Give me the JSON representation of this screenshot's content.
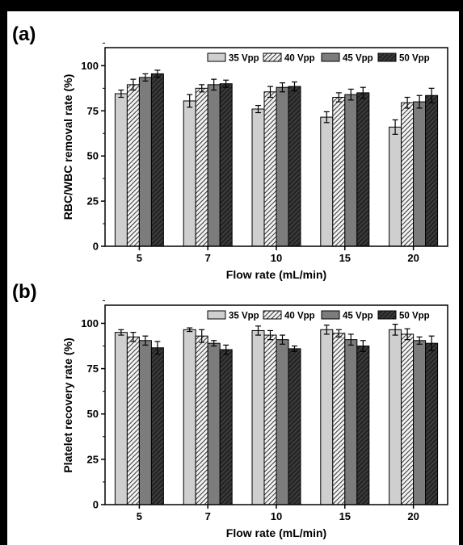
{
  "colors": {
    "35 Vpp": "#cfcfcf",
    "40 Vpp": "#f2f2f2",
    "45 Vpp": "#7c7c7c",
    "50 Vpp": "#262626",
    "hatch_on_40": "#333333",
    "hatch_on_50": "#5a5a5a"
  },
  "chart_data": [
    {
      "type": "bar",
      "panel_label": "(a)",
      "title": "",
      "xlabel": "Flow rate (mL/min)",
      "ylabel": "RBC/WBC removal rate (%)",
      "categories": [
        "5",
        "7",
        "10",
        "15",
        "20"
      ],
      "ylim": [
        0,
        110
      ],
      "yticks": [
        "0",
        "25",
        "50",
        "75",
        "100"
      ],
      "grid": false,
      "legend": "top-right",
      "series": [
        {
          "name": "35 Vpp",
          "values": [
            84.5,
            80.5,
            76,
            71.5,
            66
          ],
          "errors": [
            2,
            3.5,
            2,
            3,
            4
          ]
        },
        {
          "name": "40 Vpp",
          "values": [
            89.5,
            87.5,
            85.5,
            82.5,
            79.5
          ],
          "errors": [
            3,
            2,
            3,
            2.5,
            3
          ]
        },
        {
          "name": "45 Vpp",
          "values": [
            93.5,
            89.5,
            88,
            84,
            80
          ],
          "errors": [
            2,
            3,
            2.5,
            3,
            3.5
          ]
        },
        {
          "name": "50 Vpp",
          "values": [
            95.5,
            90,
            88.5,
            85,
            83.5
          ],
          "errors": [
            2,
            2,
            2.5,
            3,
            4
          ]
        }
      ]
    },
    {
      "type": "bar",
      "panel_label": "(b)",
      "title": "",
      "xlabel": "Flow rate (mL/min)",
      "ylabel": "Platelet recovery rate (%)",
      "categories": [
        "5",
        "7",
        "10",
        "15",
        "20"
      ],
      "ylim": [
        0,
        110
      ],
      "yticks": [
        "0",
        "25",
        "50",
        "75",
        "100"
      ],
      "grid": false,
      "legend": "top-right",
      "series": [
        {
          "name": "35 Vpp",
          "values": [
            95,
            96.5,
            96,
            96.5,
            96.5
          ],
          "errors": [
            1.5,
            1,
            2.5,
            2.5,
            3
          ]
        },
        {
          "name": "40 Vpp",
          "values": [
            92.5,
            93,
            93.5,
            94.5,
            94
          ],
          "errors": [
            2.5,
            3.5,
            2.5,
            2,
            3
          ]
        },
        {
          "name": "45 Vpp",
          "values": [
            90.5,
            89,
            91,
            91,
            90.5
          ],
          "errors": [
            2.5,
            1.5,
            2.5,
            3,
            2
          ]
        },
        {
          "name": "50 Vpp",
          "values": [
            86.5,
            85.5,
            86,
            87.5,
            89
          ],
          "errors": [
            3.5,
            2.5,
            1.5,
            3,
            4
          ]
        }
      ]
    }
  ]
}
